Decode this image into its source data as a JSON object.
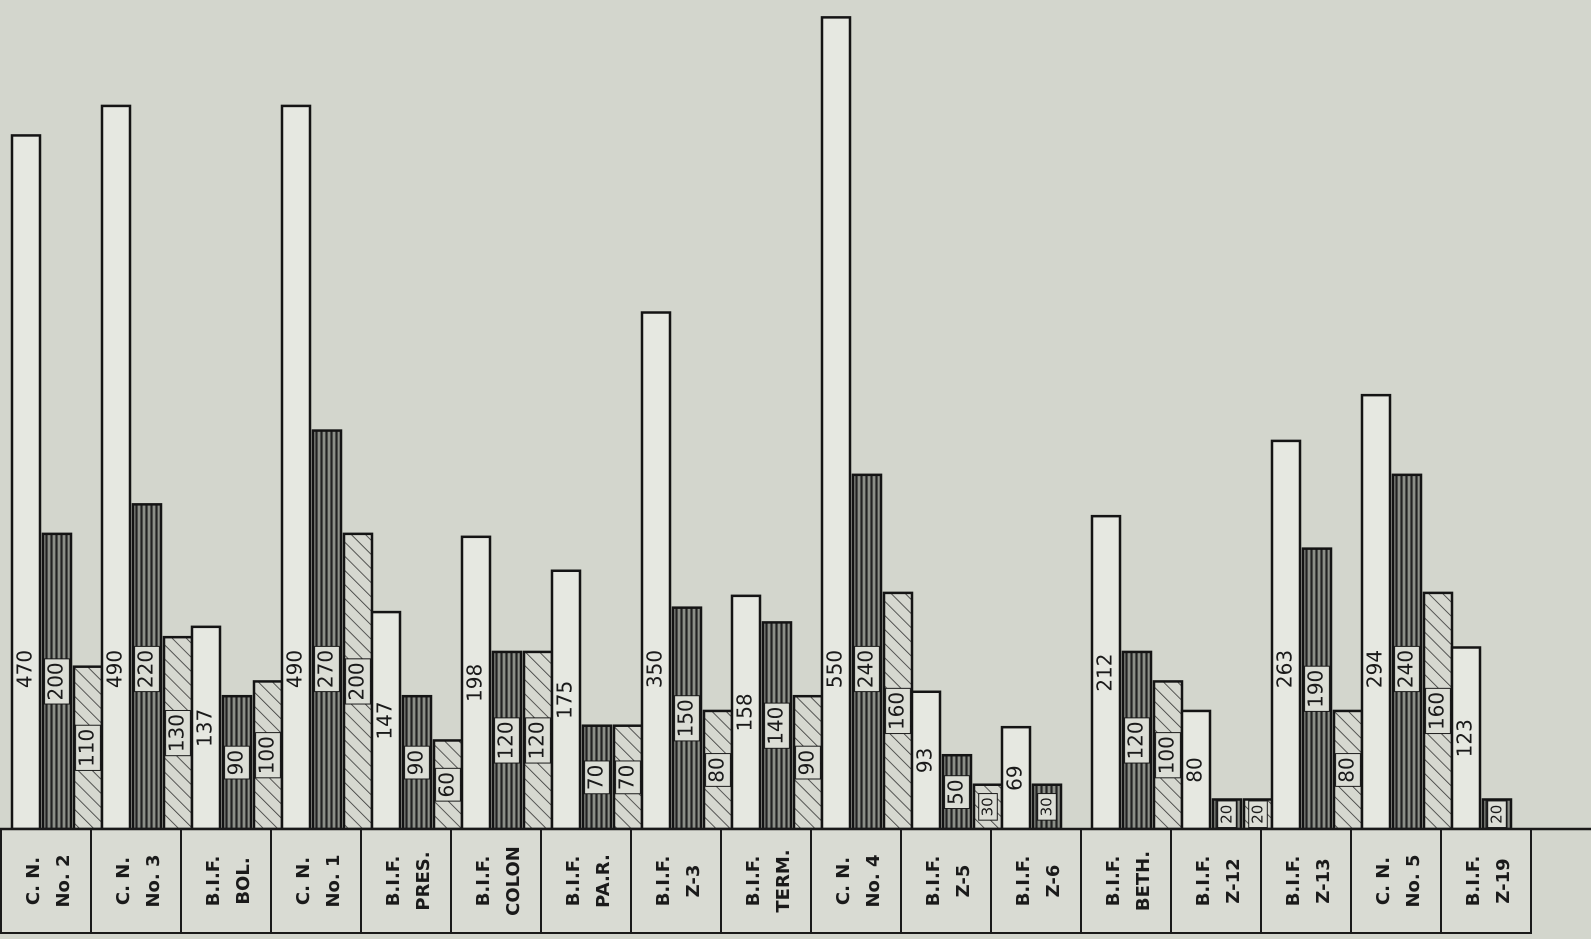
{
  "chart_data": {
    "type": "bar",
    "title": "",
    "xlabel": "",
    "ylabel": "",
    "ylim": [
      0,
      555
    ],
    "grid": false,
    "legend": "none",
    "series_styles": [
      "plain",
      "vertical-hatch",
      "diagonal-hatch"
    ],
    "colors": {
      "background": "#d3d6cd",
      "ink": "#1a1a1a",
      "bar_fill": "#e4e6df",
      "hatch": "#2a2a2a"
    },
    "categories": [
      {
        "lines": [
          "C. N.",
          "No. 2"
        ],
        "values": [
          470,
          200,
          110
        ]
      },
      {
        "lines": [
          "C. N.",
          "No. 3"
        ],
        "values": [
          490,
          220,
          130
        ]
      },
      {
        "lines": [
          "B.I.F.",
          "BOL."
        ],
        "values": [
          137,
          90,
          100
        ]
      },
      {
        "lines": [
          "C. N.",
          "No. 1"
        ],
        "values": [
          490,
          270,
          200
        ]
      },
      {
        "lines": [
          "B.I.F.",
          "PRES."
        ],
        "values": [
          147,
          90,
          60
        ]
      },
      {
        "lines": [
          "B.I.F.",
          "COLON"
        ],
        "values": [
          198,
          120,
          120
        ]
      },
      {
        "lines": [
          "B.I.F.",
          "PA.R."
        ],
        "values": [
          175,
          70,
          70
        ]
      },
      {
        "lines": [
          "B.I.F.",
          "Z-3"
        ],
        "values": [
          350,
          150,
          80
        ]
      },
      {
        "lines": [
          "B.I.F.",
          "TERM."
        ],
        "values": [
          158,
          140,
          90
        ]
      },
      {
        "lines": [
          "C. N.",
          "No. 4"
        ],
        "values": [
          550,
          240,
          160
        ]
      },
      {
        "lines": [
          "B.I.F.",
          "Z-5"
        ],
        "values": [
          93,
          50,
          30
        ]
      },
      {
        "lines": [
          "B.I.F.",
          "Z-6"
        ],
        "values": [
          69,
          30
        ]
      },
      {
        "lines": [
          "B.I.F.",
          "BETH."
        ],
        "values": [
          212,
          120,
          100
        ]
      },
      {
        "lines": [
          "B.I.F.",
          "Z-12"
        ],
        "values": [
          80,
          20,
          20
        ]
      },
      {
        "lines": [
          "B.I.F.",
          "Z-13"
        ],
        "values": [
          263,
          190,
          80
        ]
      },
      {
        "lines": [
          "C. N.",
          "No. 5"
        ],
        "values": [
          294,
          240,
          160
        ]
      },
      {
        "lines": [
          "B.I.F.",
          "Z-19"
        ],
        "values": [
          123,
          20
        ]
      }
    ]
  }
}
